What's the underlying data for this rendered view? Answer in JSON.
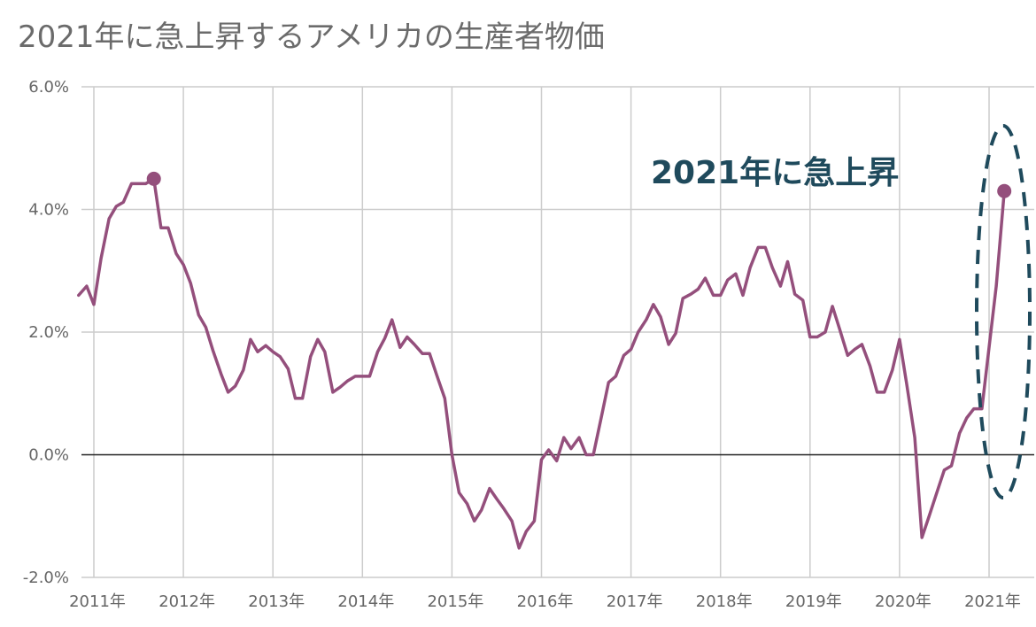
{
  "chart_data": {
    "type": "line",
    "title": "2021年に急上昇するアメリカの生産者物価",
    "annotation": "2021年に急上昇",
    "x_tick_labels": [
      "2011年",
      "2012年",
      "2013年",
      "2014年",
      "2015年",
      "2016年",
      "2017年",
      "2018年",
      "2019年",
      "2020年",
      "2021年"
    ],
    "y_tick_labels": [
      "6.0%",
      "4.0%",
      "2.0%",
      "0.0%",
      "-2.0%"
    ],
    "ylim": [
      -2.0,
      6.0
    ],
    "xlim": [
      2010.83,
      2021.42
    ],
    "grid": true,
    "line_color": "#944f7c",
    "annotation_color": "#1f4a5c",
    "highlight_points": [
      {
        "x": 2011.67,
        "y": 4.5
      },
      {
        "x": 2021.17,
        "y": 4.3
      }
    ],
    "series": [
      {
        "values": [
          [
            2010.83,
            2.6
          ],
          [
            2010.92,
            2.75
          ],
          [
            2011.0,
            2.45
          ],
          [
            2011.08,
            3.2
          ],
          [
            2011.17,
            3.85
          ],
          [
            2011.25,
            4.05
          ],
          [
            2011.33,
            4.12
          ],
          [
            2011.42,
            4.42
          ],
          [
            2011.5,
            4.42
          ],
          [
            2011.58,
            4.42
          ],
          [
            2011.67,
            4.5
          ],
          [
            2011.75,
            3.7
          ],
          [
            2011.83,
            3.7
          ],
          [
            2011.92,
            3.28
          ],
          [
            2012.0,
            3.1
          ],
          [
            2012.08,
            2.8
          ],
          [
            2012.17,
            2.28
          ],
          [
            2012.25,
            2.08
          ],
          [
            2012.33,
            1.7
          ],
          [
            2012.42,
            1.32
          ],
          [
            2012.5,
            1.02
          ],
          [
            2012.58,
            1.12
          ],
          [
            2012.67,
            1.38
          ],
          [
            2012.75,
            1.88
          ],
          [
            2012.83,
            1.68
          ],
          [
            2012.92,
            1.78
          ],
          [
            2013.0,
            1.68
          ],
          [
            2013.08,
            1.6
          ],
          [
            2013.17,
            1.4
          ],
          [
            2013.25,
            0.92
          ],
          [
            2013.33,
            0.92
          ],
          [
            2013.42,
            1.6
          ],
          [
            2013.5,
            1.88
          ],
          [
            2013.58,
            1.68
          ],
          [
            2013.67,
            1.02
          ],
          [
            2013.75,
            1.1
          ],
          [
            2013.83,
            1.2
          ],
          [
            2013.92,
            1.28
          ],
          [
            2014.0,
            1.28
          ],
          [
            2014.08,
            1.28
          ],
          [
            2014.17,
            1.68
          ],
          [
            2014.25,
            1.9
          ],
          [
            2014.33,
            2.2
          ],
          [
            2014.42,
            1.75
          ],
          [
            2014.5,
            1.92
          ],
          [
            2014.58,
            1.8
          ],
          [
            2014.67,
            1.65
          ],
          [
            2014.75,
            1.65
          ],
          [
            2014.83,
            1.3
          ],
          [
            2014.92,
            0.92
          ],
          [
            2015.0,
            0.0
          ],
          [
            2015.08,
            -0.62
          ],
          [
            2015.17,
            -0.8
          ],
          [
            2015.25,
            -1.08
          ],
          [
            2015.33,
            -0.9
          ],
          [
            2015.42,
            -0.55
          ],
          [
            2015.5,
            -0.72
          ],
          [
            2015.58,
            -0.88
          ],
          [
            2015.67,
            -1.08
          ],
          [
            2015.75,
            -1.52
          ],
          [
            2015.83,
            -1.25
          ],
          [
            2015.92,
            -1.08
          ],
          [
            2016.0,
            -0.08
          ],
          [
            2016.08,
            0.08
          ],
          [
            2016.17,
            -0.1
          ],
          [
            2016.25,
            0.28
          ],
          [
            2016.33,
            0.1
          ],
          [
            2016.42,
            0.28
          ],
          [
            2016.5,
            0.0
          ],
          [
            2016.58,
            0.0
          ],
          [
            2016.67,
            0.62
          ],
          [
            2016.75,
            1.18
          ],
          [
            2016.83,
            1.28
          ],
          [
            2016.92,
            1.62
          ],
          [
            2017.0,
            1.72
          ],
          [
            2017.08,
            2.0
          ],
          [
            2017.17,
            2.2
          ],
          [
            2017.25,
            2.45
          ],
          [
            2017.33,
            2.25
          ],
          [
            2017.42,
            1.8
          ],
          [
            2017.5,
            1.98
          ],
          [
            2017.58,
            2.55
          ],
          [
            2017.67,
            2.62
          ],
          [
            2017.75,
            2.7
          ],
          [
            2017.83,
            2.88
          ],
          [
            2017.92,
            2.6
          ],
          [
            2018.0,
            2.6
          ],
          [
            2018.08,
            2.85
          ],
          [
            2018.17,
            2.95
          ],
          [
            2018.25,
            2.6
          ],
          [
            2018.33,
            3.05
          ],
          [
            2018.42,
            3.38
          ],
          [
            2018.5,
            3.38
          ],
          [
            2018.58,
            3.05
          ],
          [
            2018.67,
            2.75
          ],
          [
            2018.75,
            3.15
          ],
          [
            2018.83,
            2.62
          ],
          [
            2018.92,
            2.52
          ],
          [
            2019.0,
            1.92
          ],
          [
            2019.08,
            1.92
          ],
          [
            2019.17,
            2.0
          ],
          [
            2019.25,
            2.42
          ],
          [
            2019.33,
            2.05
          ],
          [
            2019.42,
            1.62
          ],
          [
            2019.5,
            1.72
          ],
          [
            2019.58,
            1.8
          ],
          [
            2019.67,
            1.45
          ],
          [
            2019.75,
            1.02
          ],
          [
            2019.83,
            1.02
          ],
          [
            2019.92,
            1.38
          ],
          [
            2020.0,
            1.88
          ],
          [
            2020.08,
            1.15
          ],
          [
            2020.17,
            0.28
          ],
          [
            2020.25,
            -1.35
          ],
          [
            2020.33,
            -1.0
          ],
          [
            2020.42,
            -0.6
          ],
          [
            2020.5,
            -0.25
          ],
          [
            2020.58,
            -0.18
          ],
          [
            2020.67,
            0.35
          ],
          [
            2020.75,
            0.6
          ],
          [
            2020.83,
            0.75
          ],
          [
            2020.92,
            0.75
          ],
          [
            2021.0,
            1.75
          ],
          [
            2021.08,
            2.75
          ],
          [
            2021.17,
            4.3
          ]
        ]
      }
    ]
  }
}
